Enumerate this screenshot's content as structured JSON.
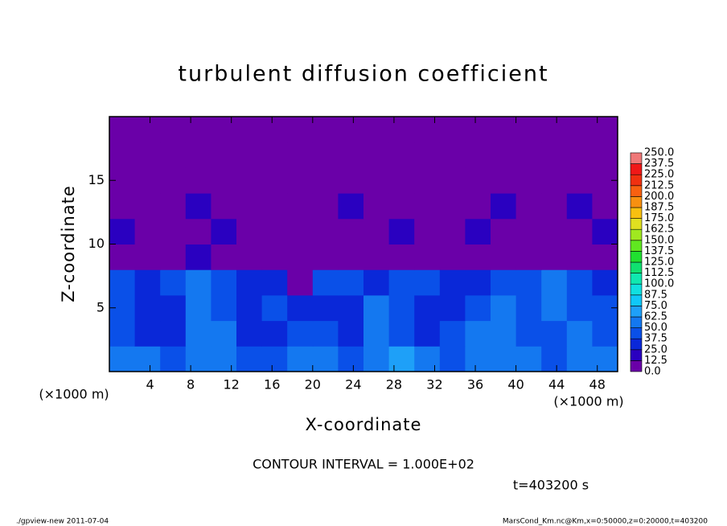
{
  "chart_data": {
    "type": "heatmap",
    "title": "turbulent diffusion coefficient",
    "x_label": "X-coordinate",
    "y_label": "Z-coordinate",
    "x_unit": "(×1000 m)",
    "y_unit": "(×1000 m)",
    "xlim": [
      0,
      50
    ],
    "ylim": [
      0,
      20
    ],
    "xticks": [
      4,
      8,
      12,
      16,
      20,
      24,
      28,
      32,
      36,
      40,
      44,
      48
    ],
    "yticks": [
      5,
      10,
      15
    ],
    "values": [
      [
        50,
        55,
        45,
        60,
        55,
        40,
        45,
        55,
        50,
        45,
        60,
        65,
        50,
        45,
        55,
        60,
        50,
        45,
        55,
        50
      ],
      [
        40,
        35,
        30,
        55,
        50,
        35,
        30,
        45,
        40,
        35,
        55,
        45,
        35,
        40,
        50,
        55,
        45,
        40,
        50,
        45
      ],
      [
        45,
        30,
        25,
        60,
        45,
        30,
        40,
        35,
        30,
        35,
        50,
        40,
        30,
        35,
        45,
        50,
        40,
        55,
        45,
        40
      ],
      [
        40,
        35,
        40,
        55,
        45,
        35,
        30,
        5,
        45,
        40,
        35,
        45,
        40,
        30,
        35,
        40,
        45,
        50,
        40,
        35
      ],
      [
        2,
        2,
        5,
        15,
        5,
        2,
        2,
        2,
        2,
        2,
        5,
        5,
        2,
        2,
        2,
        2,
        5,
        2,
        2,
        2
      ],
      [
        15,
        2,
        2,
        2,
        15,
        2,
        2,
        2,
        2,
        2,
        2,
        15,
        2,
        2,
        15,
        2,
        2,
        2,
        2,
        15
      ],
      [
        2,
        2,
        2,
        15,
        2,
        2,
        2,
        2,
        2,
        15,
        2,
        2,
        2,
        2,
        2,
        15,
        2,
        2,
        15,
        2
      ],
      [
        2,
        2,
        2,
        2,
        2,
        2,
        2,
        2,
        2,
        2,
        2,
        2,
        2,
        2,
        2,
        2,
        2,
        2,
        2,
        2
      ],
      [
        2,
        2,
        2,
        2,
        2,
        2,
        2,
        2,
        2,
        2,
        2,
        2,
        2,
        2,
        2,
        2,
        2,
        2,
        2,
        2
      ],
      [
        2,
        2,
        2,
        2,
        2,
        2,
        2,
        2,
        2,
        2,
        2,
        2,
        2,
        2,
        2,
        2,
        2,
        2,
        2,
        2
      ]
    ],
    "colorbar": {
      "levels": [
        {
          "value": 0,
          "label": "0.0"
        },
        {
          "value": 12.5,
          "label": "12.5"
        },
        {
          "value": 25,
          "label": "25.0"
        },
        {
          "value": 37.5,
          "label": "37.5"
        },
        {
          "value": 50,
          "label": "50.0"
        },
        {
          "value": 62.5,
          "label": "62.5"
        },
        {
          "value": 75,
          "label": "75.0"
        },
        {
          "value": 87.5,
          "label": "87.5"
        },
        {
          "value": 100,
          "label": "100.0"
        },
        {
          "value": 112.5,
          "label": "112.5"
        },
        {
          "value": 125,
          "label": "125.0"
        },
        {
          "value": 137.5,
          "label": "137.5"
        },
        {
          "value": 150,
          "label": "150.0"
        },
        {
          "value": 162.5,
          "label": "162.5"
        },
        {
          "value": 175,
          "label": "175.0"
        },
        {
          "value": 187.5,
          "label": "187.5"
        },
        {
          "value": 200,
          "label": "200.0"
        },
        {
          "value": 212.5,
          "label": "212.5"
        },
        {
          "value": 225,
          "label": "225.0"
        },
        {
          "value": 237.5,
          "label": "237.5"
        },
        {
          "value": 250,
          "label": "250.0"
        }
      ],
      "colors": [
        "#6a00a8",
        "#2a00c0",
        "#0a28d8",
        "#0a50e8",
        "#1478f0",
        "#1ea0f8",
        "#10c8f8",
        "#10e0e0",
        "#10e8b0",
        "#10e070",
        "#20e030",
        "#60e820",
        "#a0e820",
        "#e0e020",
        "#f8c010",
        "#f89010",
        "#f86010",
        "#f03010",
        "#f01818",
        "#f07878"
      ]
    },
    "annotation": "CONTOUR INTERVAL = 1.000E+02",
    "time_label": "t=403200 s",
    "footer_left": "./gpview-new  2011-07-04",
    "footer_right": "MarsCond_Km.nc@Km,x=0:50000,z=0:20000,t=403200"
  }
}
